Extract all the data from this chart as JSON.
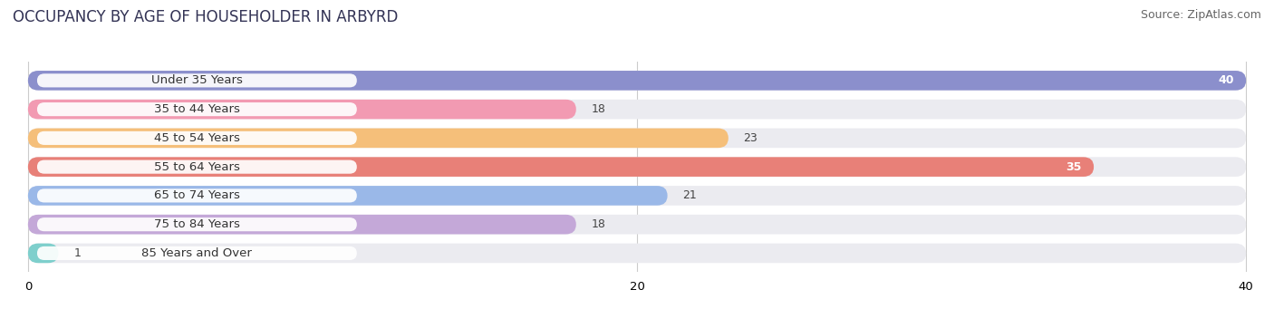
{
  "title": "OCCUPANCY BY AGE OF HOUSEHOLDER IN ARBYRD",
  "source": "Source: ZipAtlas.com",
  "categories": [
    "Under 35 Years",
    "35 to 44 Years",
    "45 to 54 Years",
    "55 to 64 Years",
    "65 to 74 Years",
    "75 to 84 Years",
    "85 Years and Over"
  ],
  "values": [
    40,
    18,
    23,
    35,
    21,
    18,
    1
  ],
  "bar_colors": [
    "#8b8fcc",
    "#f29ab2",
    "#f5bf7a",
    "#e88078",
    "#9ab8e8",
    "#c4a8d8",
    "#7ecfcc"
  ],
  "bar_bg_color": "#ebebf0",
  "label_box_color": "#ffffff",
  "xlim_max": 40,
  "xticks": [
    0,
    20,
    40
  ],
  "title_fontsize": 12,
  "label_fontsize": 9.5,
  "value_fontsize": 9,
  "source_fontsize": 9,
  "fig_width": 14.06,
  "fig_height": 3.41,
  "bar_height": 0.68,
  "bg_color": "#ffffff",
  "grid_color": "#cccccc",
  "value_label_white": [
    0,
    3
  ],
  "bar_gap": 0.32
}
